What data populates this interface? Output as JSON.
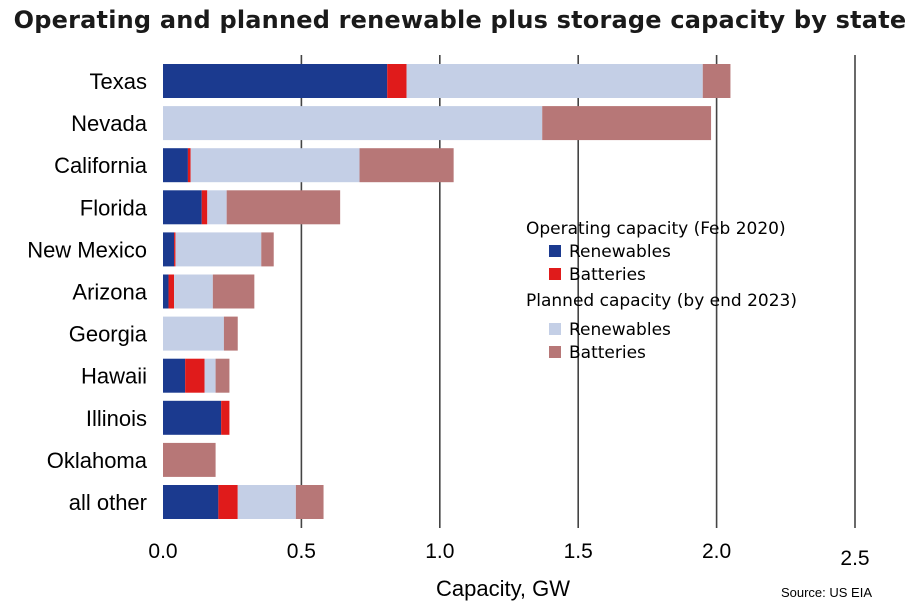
{
  "title": "Operating and planned renewable plus storage capacity by state",
  "source": "Source: US EIA",
  "colors": {
    "op_renewables": "#1b3a8f",
    "op_batteries": "#e01b1b",
    "pl_renewables": "#c4cfe6",
    "pl_batteries": "#b77777",
    "grid": "#444444"
  },
  "legend": {
    "operating_heading": "Operating capacity (Feb 2020)",
    "planned_heading": "Planned capacity (by end 2023)",
    "items": [
      {
        "group": "operating",
        "label": "Renewables",
        "color_key": "op_renewables"
      },
      {
        "group": "operating",
        "label": "Batteries",
        "color_key": "op_batteries"
      },
      {
        "group": "planned",
        "label": "Renewables",
        "color_key": "pl_renewables"
      },
      {
        "group": "planned",
        "label": "Batteries",
        "color_key": "pl_batteries"
      }
    ]
  },
  "chart_data": {
    "type": "bar",
    "orientation": "horizontal",
    "stacked": true,
    "title": "Operating and planned renewable plus storage capacity by state",
    "xlabel": "Capacity, GW",
    "ylabel": "",
    "xlim": [
      0,
      2.5
    ],
    "xticks": [
      0.0,
      0.5,
      1.0,
      1.5,
      2.0,
      2.5
    ],
    "xtick_labels": [
      "0.0",
      "0.5",
      "1.0",
      "1.5",
      "2.0",
      "2.5"
    ],
    "grid": "vertical",
    "legend_position": "right",
    "categories": [
      "Texas",
      "Nevada",
      "California",
      "Florida",
      "New Mexico",
      "Arizona",
      "Georgia",
      "Hawaii",
      "Illinois",
      "Oklahoma",
      "all other"
    ],
    "series": [
      {
        "name": "Operating capacity (Feb 2020) - Renewables",
        "color_key": "op_renewables",
        "values": [
          0.81,
          0.0,
          0.09,
          0.14,
          0.04,
          0.02,
          0.0,
          0.08,
          0.21,
          0.0,
          0.2
        ]
      },
      {
        "name": "Operating capacity (Feb 2020) - Batteries",
        "color_key": "op_batteries",
        "values": [
          0.07,
          0.0,
          0.01,
          0.02,
          0.005,
          0.02,
          0.0,
          0.07,
          0.03,
          0.0,
          0.07
        ]
      },
      {
        "name": "Planned capacity (by end 2023) - Renewables",
        "color_key": "pl_renewables",
        "values": [
          1.07,
          1.37,
          0.61,
          0.07,
          0.31,
          0.14,
          0.22,
          0.04,
          0.0,
          0.0,
          0.21
        ]
      },
      {
        "name": "Planned capacity (by end 2023) - Batteries",
        "color_key": "pl_batteries",
        "values": [
          0.1,
          0.61,
          0.34,
          0.41,
          0.045,
          0.15,
          0.05,
          0.05,
          0.0,
          0.19,
          0.1
        ]
      }
    ]
  }
}
